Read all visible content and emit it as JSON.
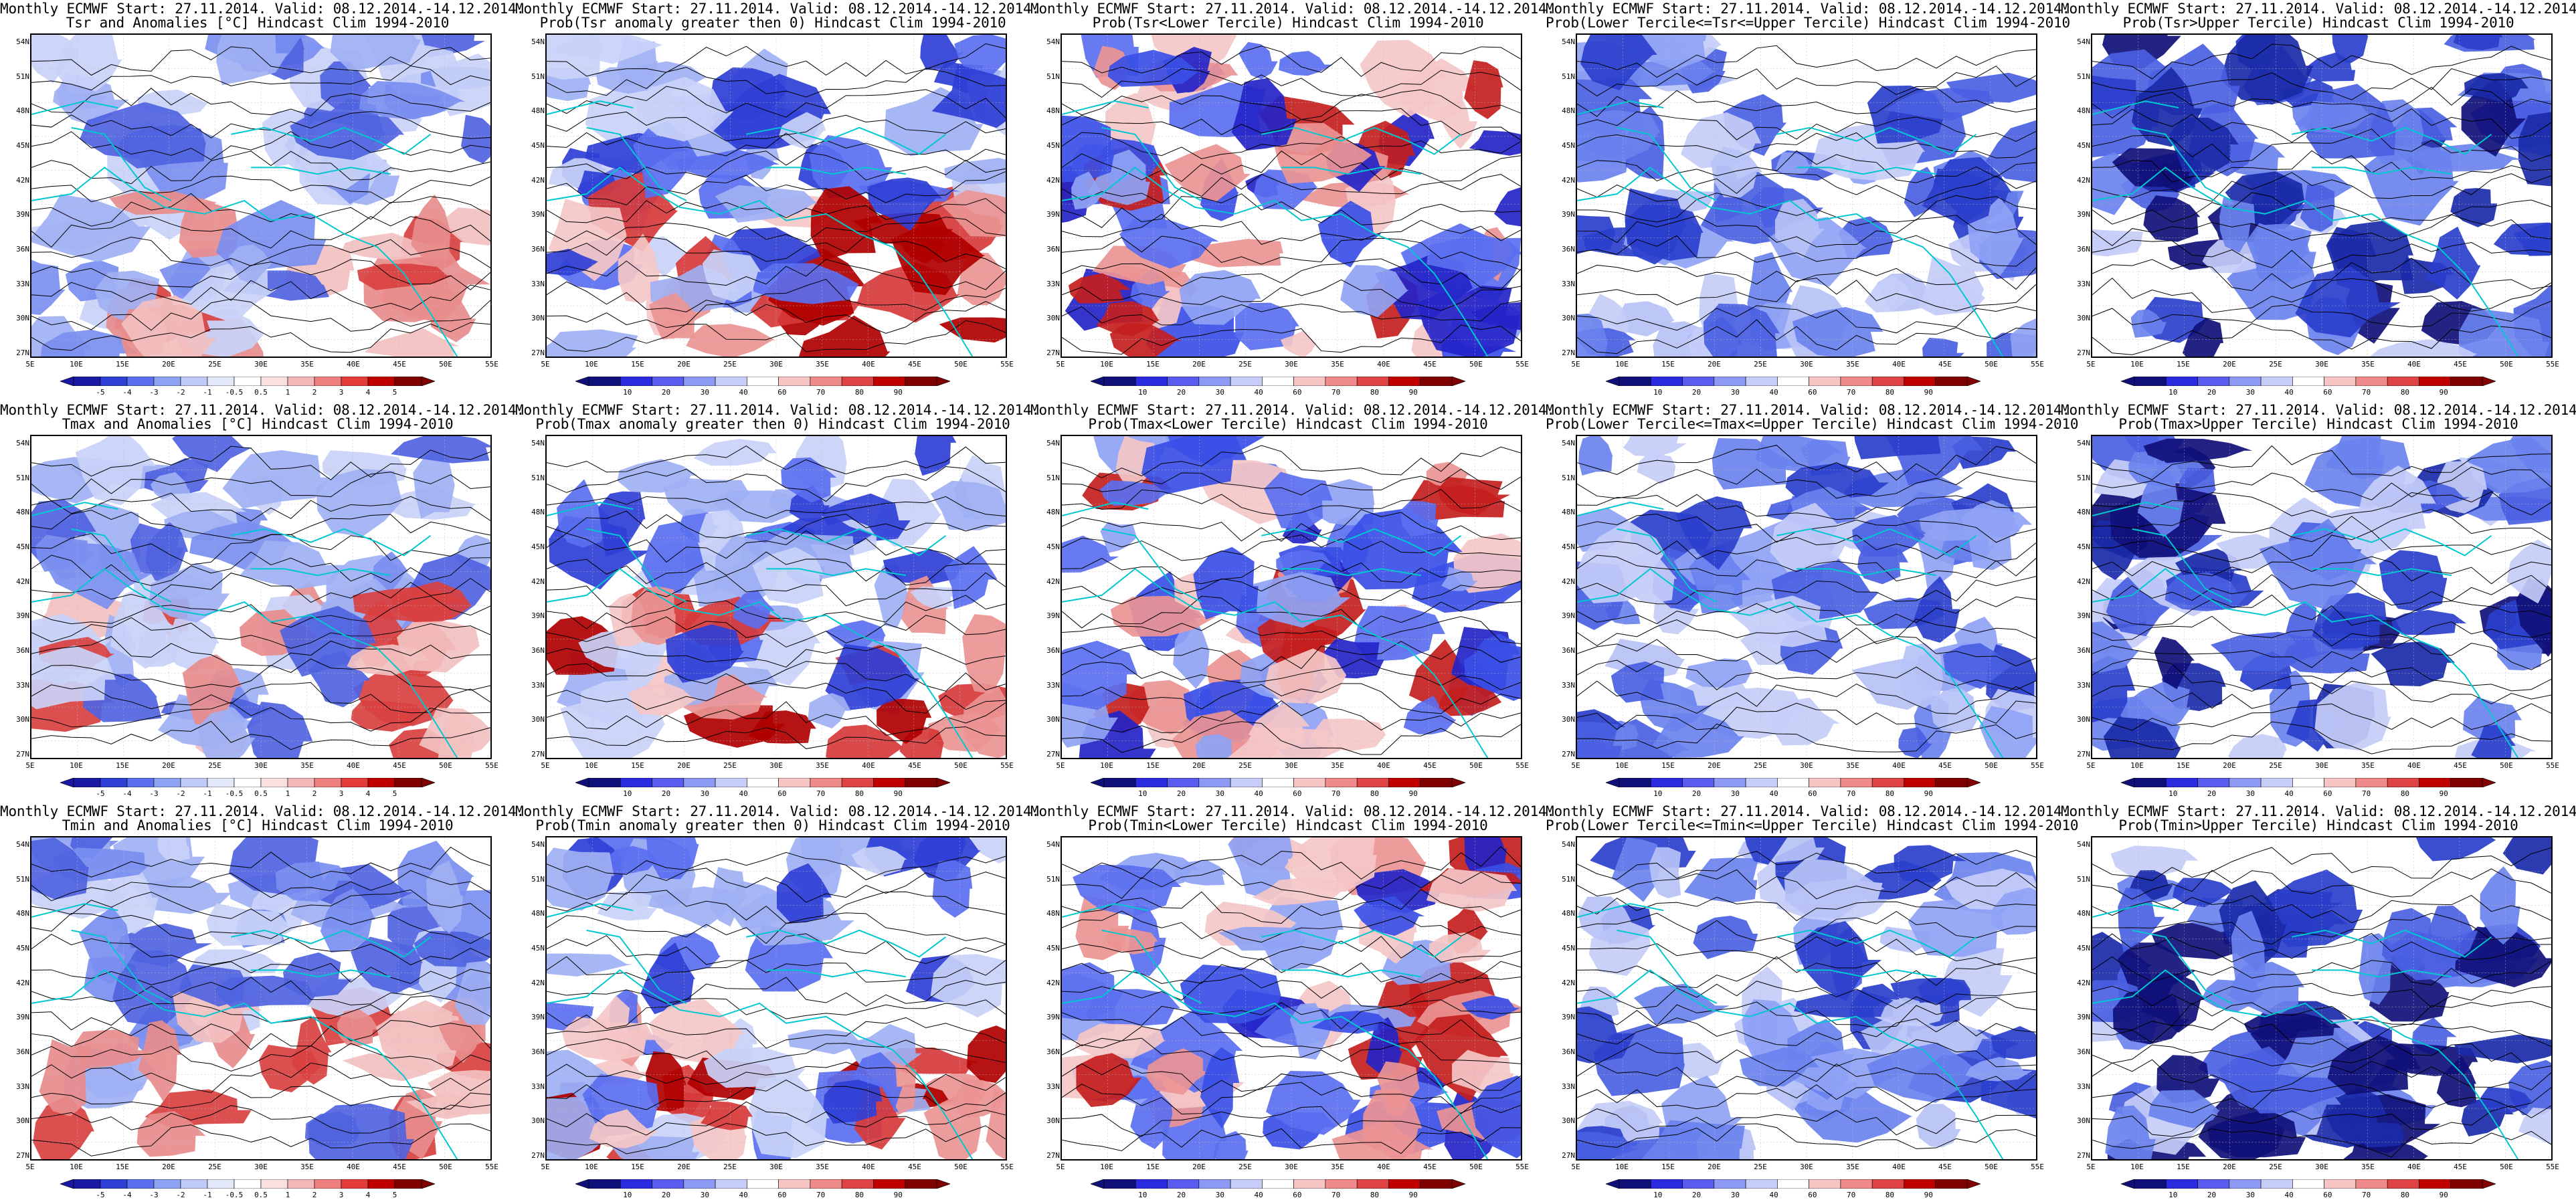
{
  "page": {
    "layout": "3 rows x 5 columns of map panels"
  },
  "colors": {
    "coastline": "#00c8d0",
    "contour": "#000000",
    "anomaly_scale": [
      "#1919a6",
      "#2f3fd6",
      "#5a6ff0",
      "#8fa3f5",
      "#bfcaf7",
      "#e3e8fb",
      "#ffffff",
      "#fbe0e0",
      "#f5b8b8",
      "#f07f7f",
      "#e63b3b",
      "#c00000",
      "#800000"
    ],
    "prob_scale": [
      "#10107a",
      "#2a2ae0",
      "#5b5bf0",
      "#8c9af4",
      "#c5cdf8",
      "#ffffff",
      "#f8c5c5",
      "#f18a8a",
      "#e04343",
      "#c00000",
      "#800000"
    ]
  },
  "axes": {
    "lon_ticks": [
      "5E",
      "10E",
      "15E",
      "20E",
      "25E",
      "30E",
      "35E",
      "40E",
      "45E",
      "50E",
      "55E"
    ],
    "lat_ticks": [
      "54N",
      "51N",
      "48N",
      "45N",
      "42N",
      "39N",
      "36N",
      "33N",
      "30N",
      "27N"
    ]
  },
  "colorbars": {
    "anomaly": [
      "-5",
      "-4",
      "-3",
      "-2",
      "-1",
      "-0.5",
      "0.5",
      "1",
      "2",
      "3",
      "4",
      "5"
    ],
    "probability": [
      "10",
      "20",
      "30",
      "40",
      "60",
      "70",
      "80",
      "90"
    ]
  },
  "panels": [
    {
      "title1": "Monthly ECMWF Start: 27.11.2014. Valid: 08.12.2014.-14.12.2014.",
      "title2": "Tsr and Anomalies [°C] Hindcast Clim 1994-2010",
      "kind": "anomaly",
      "tone": "anom"
    },
    {
      "title1": "Monthly ECMWF Start: 27.11.2014. Valid: 08.12.2014.-14.12.2014.",
      "title2": "Prob(Tsr anomaly greater then 0) Hindcast Clim 1994-2010",
      "kind": "probability",
      "tone": "mixed"
    },
    {
      "title1": "Monthly ECMWF Start: 27.11.2014. Valid: 08.12.2014.-14.12.2014.",
      "title2": "Prob(Tsr<Lower Tercile) Hindcast Clim 1994-2010",
      "kind": "probability",
      "tone": "lower"
    },
    {
      "title1": "Monthly ECMWF Start: 27.11.2014. Valid: 08.12.2014.-14.12.2014.",
      "title2": "Prob(Lower Tercile<=Tsr<=Upper Tercile) Hindcast Clim 1994-2010",
      "kind": "probability",
      "tone": "blue"
    },
    {
      "title1": "Monthly ECMWF Start: 27.11.2014. Valid: 08.12.2014.-14.12.2014.",
      "title2": "Prob(Tsr>Upper Tercile) Hindcast Clim 1994-2010",
      "kind": "probability",
      "tone": "deepblue"
    },
    {
      "title1": "Monthly ECMWF Start: 27.11.2014. Valid: 08.12.2014.-14.12.2014.",
      "title2": "Tmax and Anomalies [°C] Hindcast Clim 1994-2010",
      "kind": "anomaly",
      "tone": "anom"
    },
    {
      "title1": "Monthly ECMWF Start: 27.11.2014. Valid: 08.12.2014.-14.12.2014.",
      "title2": "Prob(Tmax anomaly greater then 0) Hindcast Clim 1994-2010",
      "kind": "probability",
      "tone": "mixed"
    },
    {
      "title1": "Monthly ECMWF Start: 27.11.2014. Valid: 08.12.2014.-14.12.2014.",
      "title2": "Prob(Tmax<Lower Tercile) Hindcast Clim 1994-2010",
      "kind": "probability",
      "tone": "lower"
    },
    {
      "title1": "Monthly ECMWF Start: 27.11.2014. Valid: 08.12.2014.-14.12.2014.",
      "title2": "Prob(Lower Tercile<=Tmax<=Upper Tercile) Hindcast Clim 1994-2010",
      "kind": "probability",
      "tone": "blue"
    },
    {
      "title1": "Monthly ECMWF Start: 27.11.2014. Valid: 08.12.2014.-14.12.2014.",
      "title2": "Prob(Tmax>Upper Tercile) Hindcast Clim 1994-2010",
      "kind": "probability",
      "tone": "deepblue"
    },
    {
      "title1": "Monthly ECMWF Start: 27.11.2014. Valid: 08.12.2014.-14.12.2014.",
      "title2": "Tmin and Anomalies [°C] Hindcast Clim 1994-2010",
      "kind": "anomaly",
      "tone": "anom"
    },
    {
      "title1": "Monthly ECMWF Start: 27.11.2014. Valid: 08.12.2014.-14.12.2014.",
      "title2": "Prob(Tmin anomaly greater then 0) Hindcast Clim 1994-2010",
      "kind": "probability",
      "tone": "mixed"
    },
    {
      "title1": "Monthly ECMWF Start: 27.11.2014. Valid: 08.12.2014.-14.12.2014.",
      "title2": "Prob(Tmin<Lower Tercile) Hindcast Clim 1994-2010",
      "kind": "probability",
      "tone": "lower"
    },
    {
      "title1": "Monthly ECMWF Start: 27.11.2014. Valid: 08.12.2014.-14.12.2014.",
      "title2": "Prob(Lower Tercile<=Tmin<=Upper Tercile) Hindcast Clim 1994-2010",
      "kind": "probability",
      "tone": "blue"
    },
    {
      "title1": "Monthly ECMWF Start: 27.11.2014. Valid: 08.12.2014.-14.12.2014.",
      "title2": "Prob(Tmin>Upper Tercile) Hindcast Clim 1994-2010",
      "kind": "probability",
      "tone": "deepblue"
    }
  ]
}
